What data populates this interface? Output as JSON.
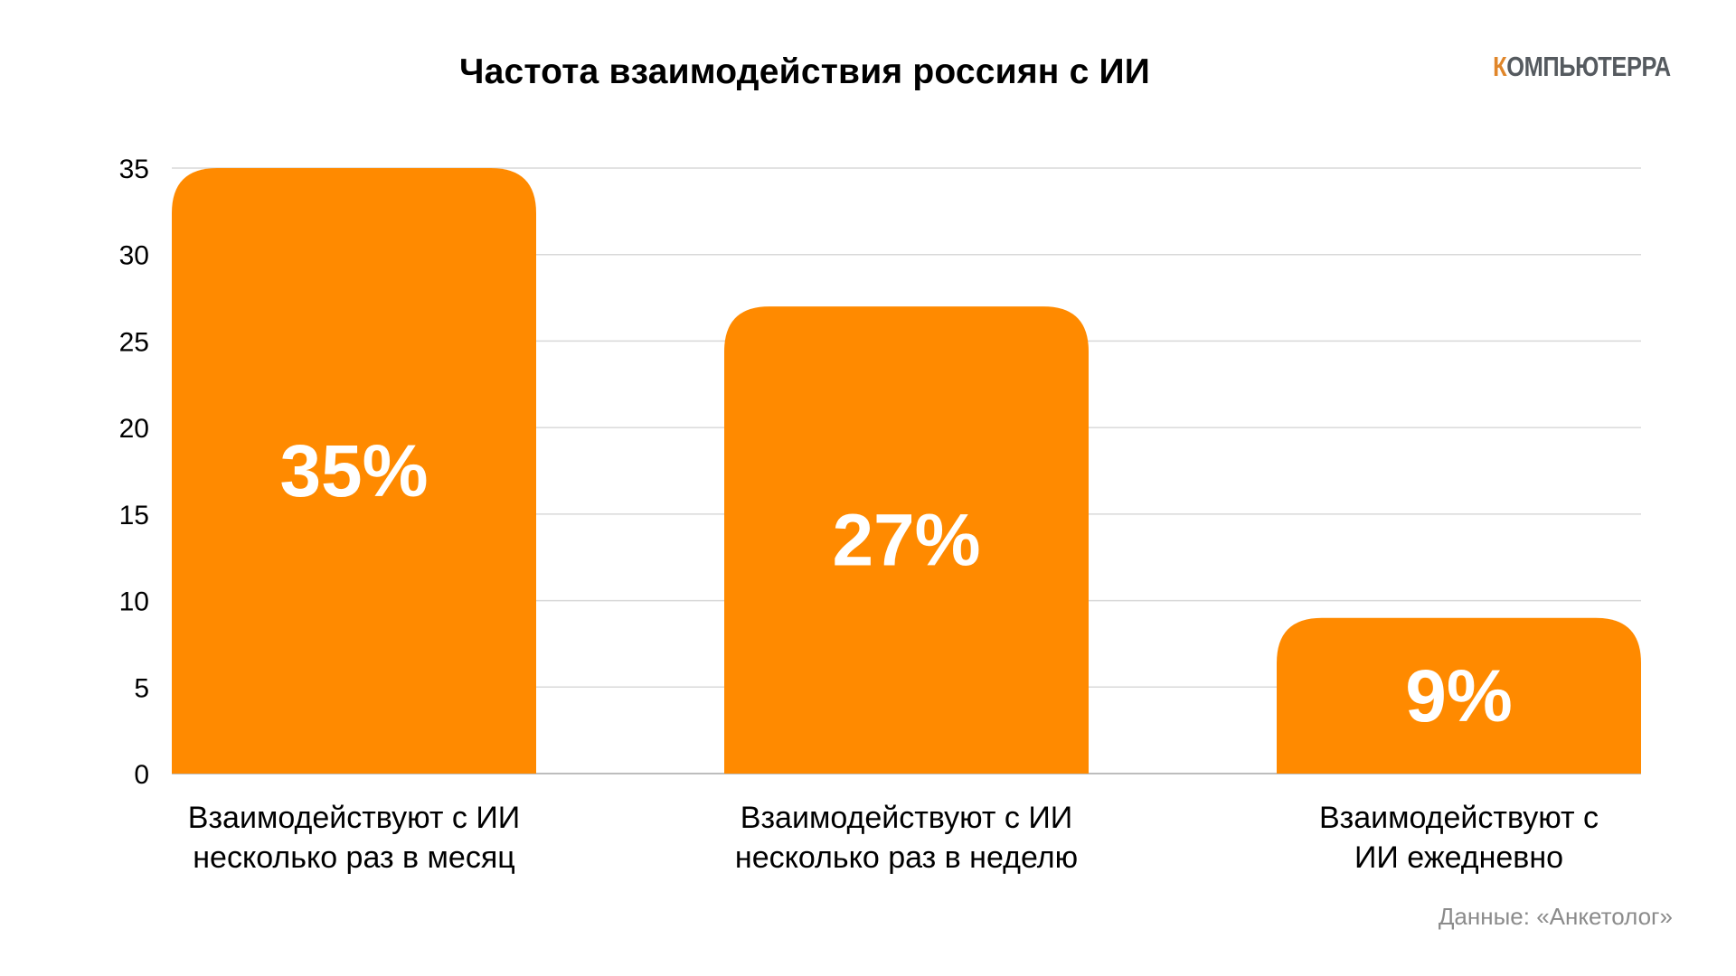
{
  "logo": {
    "first_letter": "К",
    "rest": "ОМПЬЮТЕРРА"
  },
  "source_note": "Данные: «Анкетолог»",
  "chart_data": {
    "type": "bar",
    "title": "Частота взаимодействия россиян с ИИ",
    "xlabel": "",
    "ylabel": "",
    "ylim": [
      0,
      35
    ],
    "yticks": [
      "0",
      "5",
      "10",
      "15",
      "20",
      "25",
      "30",
      "35"
    ],
    "grid": true,
    "legend": "none",
    "categories": [
      [
        "Взаимодействуют с ИИ",
        "несколько раз в месяц"
      ],
      [
        "Взаимодействуют с ИИ",
        "несколько раз в неделю"
      ],
      [
        "Взаимодействуют с",
        "ИИ ежедневно"
      ]
    ],
    "values": [
      35,
      27,
      9
    ],
    "data_labels": [
      "35%",
      "27%",
      "9%"
    ],
    "bar_color": "#ff8a00",
    "label_color": "#ffffff"
  }
}
